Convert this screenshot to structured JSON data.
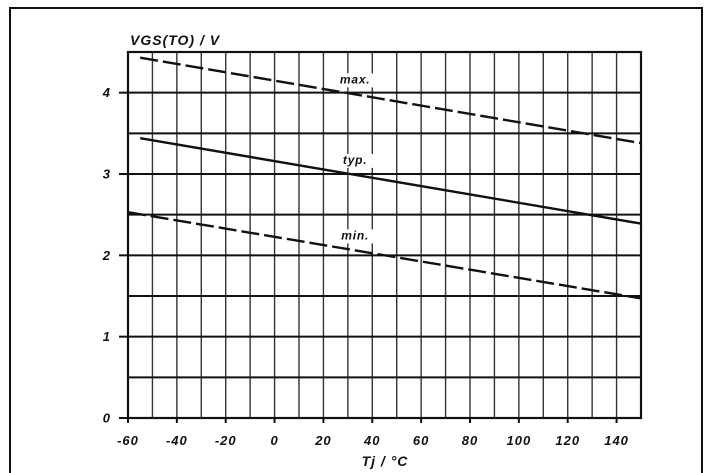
{
  "chart_data": {
    "type": "line",
    "xlabel": "Tj / °C",
    "ylabel": "VGS(TO) / V",
    "xlim": [
      -60,
      150
    ],
    "ylim": [
      0,
      4.5
    ],
    "xticks": [
      -60,
      -40,
      -20,
      0,
      20,
      40,
      60,
      80,
      100,
      120,
      140
    ],
    "yticks": [
      0,
      1,
      2,
      3,
      4
    ],
    "grid": true,
    "grid_x_step": 10,
    "grid_y_step": 0.5,
    "series": [
      {
        "name": "max.",
        "x": [
          -55,
          150
        ],
        "y": [
          4.43,
          3.38
        ],
        "dashed": true
      },
      {
        "name": "typ.",
        "x": [
          -55,
          150
        ],
        "y": [
          3.44,
          2.39
        ],
        "dashed": false
      },
      {
        "name": "min.",
        "x": [
          -60,
          150
        ],
        "y": [
          2.53,
          1.47
        ],
        "dashed": true
      }
    ]
  },
  "colors": {
    "ink": "#111111",
    "background": "#ffffff"
  }
}
